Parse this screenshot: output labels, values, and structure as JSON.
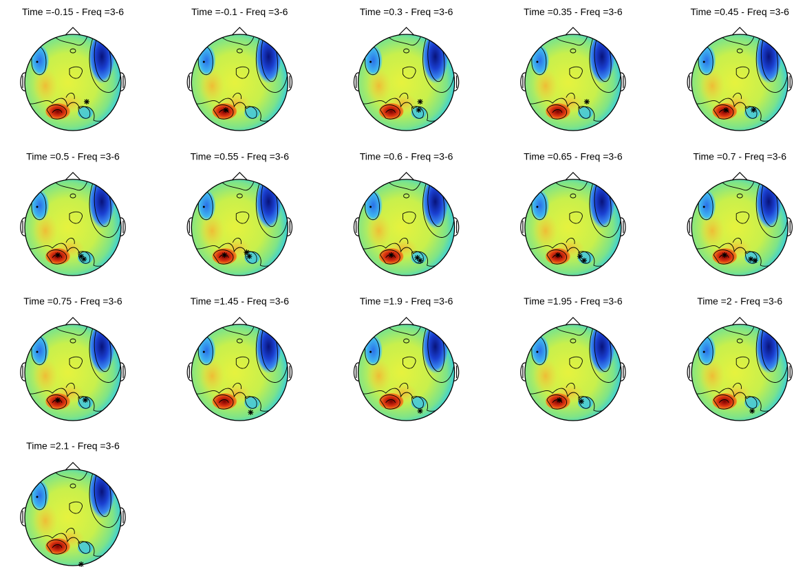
{
  "panels": [
    {
      "title": "Time =-0.15 - Freq =3-6"
    },
    {
      "title": "Time =-0.1 - Freq =3-6"
    },
    {
      "title": "Time =0.3 - Freq =3-6"
    },
    {
      "title": "Time =0.35 - Freq =3-6"
    },
    {
      "title": "Time =0.45 - Freq =3-6"
    },
    {
      "title": "Time =0.5 - Freq =3-6"
    },
    {
      "title": "Time =0.55 - Freq =3-6"
    },
    {
      "title": "Time =0.6 - Freq =3-6"
    },
    {
      "title": "Time =0.65 - Freq =3-6"
    },
    {
      "title": "Time =0.7 - Freq =3-6"
    },
    {
      "title": "Time =0.75 - Freq =3-6"
    },
    {
      "title": "Time =1.45 - Freq =3-6"
    },
    {
      "title": "Time =1.9 - Freq =3-6"
    },
    {
      "title": "Time =1.95 - Freq =3-6"
    },
    {
      "title": "Time =2 - Freq =3-6"
    },
    {
      "title": "Time =2.1 - Freq =3-6"
    }
  ]
}
